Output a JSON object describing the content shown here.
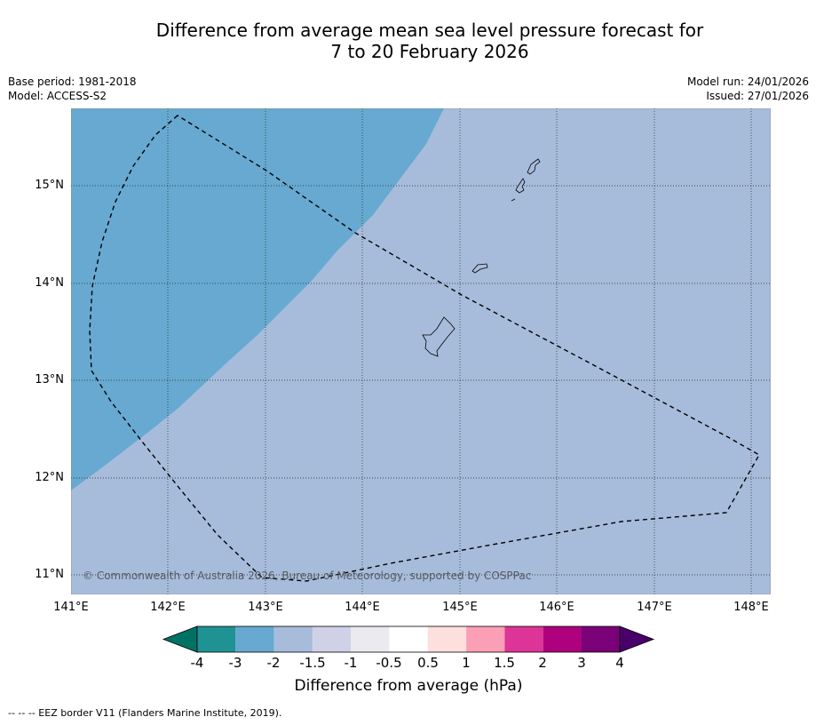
{
  "title": {
    "line1": "Difference from average mean sea level pressure forecast for",
    "line2": "7 to 20 February 2026"
  },
  "meta": {
    "base_period": "Base period: 1981-2018",
    "model": "Model: ACCESS-S2",
    "model_run": "Model run: 24/01/2026",
    "issued": "Issued: 27/01/2026"
  },
  "map": {
    "lat_labels": [
      "15°N",
      "14°N",
      "13°N",
      "12°N",
      "11°N"
    ],
    "lon_labels": [
      "141°E",
      "142°E",
      "143°E",
      "144°E",
      "145°E",
      "146°E",
      "147°E",
      "148°E"
    ],
    "copyright": "© Commonwealth of Australia 2026, Bureau of Meteorology, supported by COSPPac",
    "colors": {
      "band_minus2_minus3": "#67a9d0",
      "band_minus1_5_minus2": "#a7bcdb"
    }
  },
  "colorbar": {
    "labels": [
      "-4",
      "-3",
      "-2",
      "-1.5",
      "-1",
      "-0.5",
      "0.5",
      "1",
      "1.5",
      "2",
      "3",
      "4"
    ],
    "colors": [
      "#007265",
      "#1f9294",
      "#67a9d0",
      "#a7bcdb",
      "#d0d1e6",
      "#ebeaef",
      "#ffffff",
      "#fde0dd",
      "#fa9fb5",
      "#dd3497",
      "#ae017e",
      "#7a0177",
      "#49006a"
    ],
    "title": "Difference from average (hPa)"
  },
  "footnote": "--  --  -- EEZ border V11 (Flanders Marine Institute, 2019)."
}
